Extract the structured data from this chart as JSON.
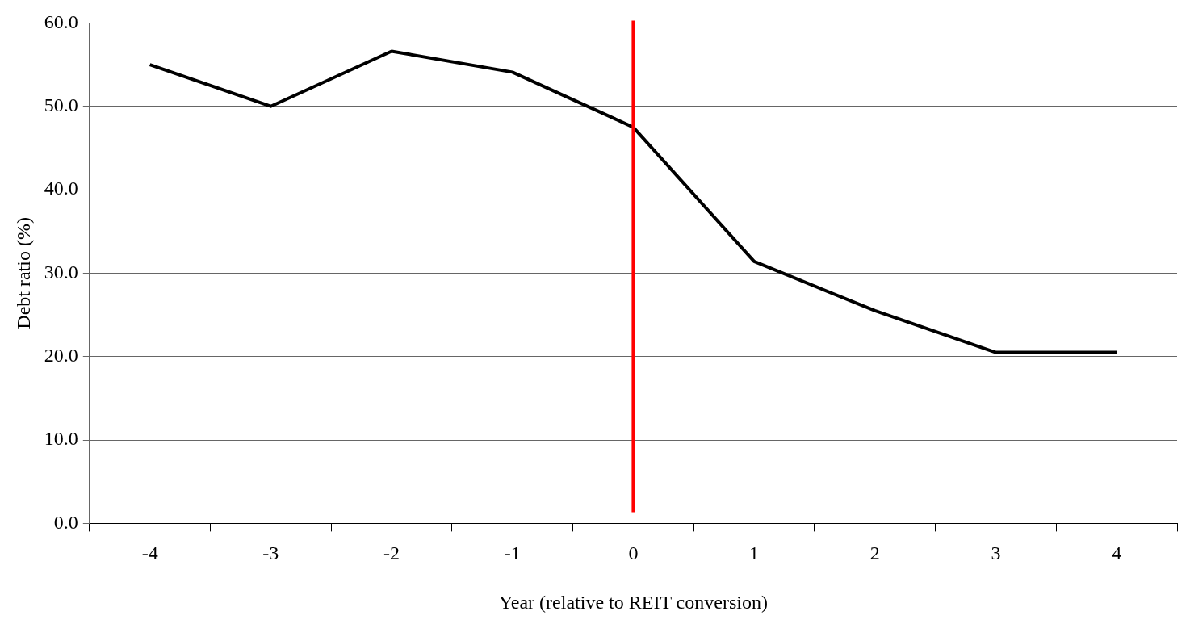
{
  "chart_data": {
    "type": "line",
    "xlabel": "Year (relative to REIT conversion)",
    "ylabel": "Debt ratio (%)",
    "categories": [
      "-4",
      "-3",
      "-2",
      "-1",
      "0",
      "1",
      "2",
      "3",
      "4"
    ],
    "series": [
      {
        "color": "#000000",
        "values": [
          55.0,
          50.0,
          56.6,
          54.1,
          47.5,
          31.4,
          25.5,
          20.5,
          20.5
        ]
      }
    ],
    "ylim": [
      0,
      60
    ],
    "yticks": [
      {
        "value": 0,
        "label": "0.0"
      },
      {
        "value": 10,
        "label": "10.0"
      },
      {
        "value": 20,
        "label": "20.0"
      },
      {
        "value": 30,
        "label": "30.0"
      },
      {
        "value": 40,
        "label": "40.0"
      },
      {
        "value": 50,
        "label": "50.0"
      },
      {
        "value": 60,
        "label": "60.0"
      }
    ],
    "grid": "y",
    "legend": false,
    "marker": "none",
    "line_style": "solid",
    "ref_lines": [
      {
        "axis": "x",
        "value": "0",
        "color": "#ff0000"
      }
    ]
  }
}
